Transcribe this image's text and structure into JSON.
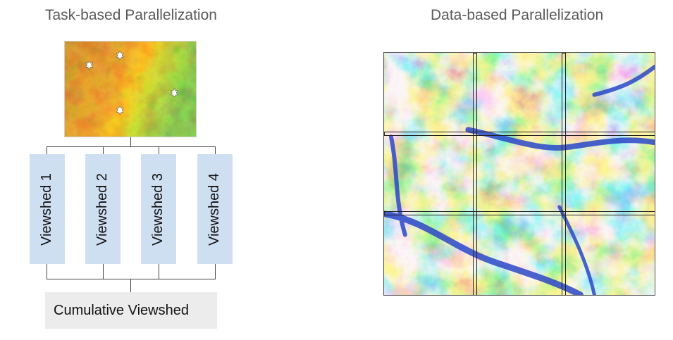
{
  "task_panel": {
    "title": "Task-based Parallelization",
    "viewsheds": [
      "Viewshed 1",
      "Viewshed 2",
      "Viewshed 3",
      "Viewshed 4"
    ],
    "result_label": "Cumulative Viewshed",
    "viewpoint_count": 4,
    "dem_palette": [
      "#2b1d12",
      "#6b3a16",
      "#b85d12",
      "#e08a1c",
      "#f2a33a",
      "#ff6a00",
      "#ffd200",
      "#c9f02a",
      "#34e03c",
      "#00c47a"
    ]
  },
  "data_panel": {
    "title": "Data-based Parallelization",
    "tile_rows": 3,
    "tile_cols": 3,
    "dem_palette": [
      "#1f3fb8",
      "#2f6fe0",
      "#3aa0ea",
      "#5fd0f0",
      "#8fe6c8",
      "#bdf08a",
      "#f5d35a",
      "#f5b04a",
      "#f49a3e",
      "#f7c7a8",
      "#fbe4d8"
    ]
  }
}
